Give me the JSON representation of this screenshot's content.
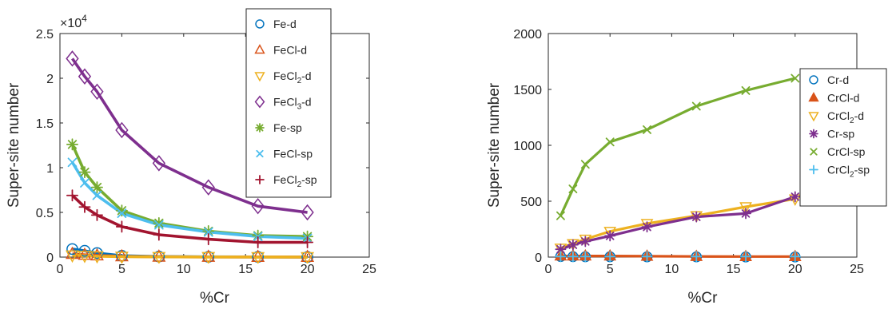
{
  "chart_data": [
    {
      "type": "line",
      "xlabel": "%Cr",
      "ylabel": "Super-site number",
      "xlim": [
        0,
        25
      ],
      "ylim": [
        0,
        25000
      ],
      "y_exponent_label": "×10",
      "y_exponent_power": "4",
      "xticks": [
        0,
        5,
        10,
        15,
        20,
        25
      ],
      "xtick_labels": [
        "0",
        "5",
        "10",
        "15",
        "20",
        "25"
      ],
      "yticks": [
        0,
        5000,
        10000,
        15000,
        20000,
        25000
      ],
      "ytick_labels": [
        "0",
        "0.5",
        "1",
        "1.5",
        "2",
        "2.5"
      ],
      "grid": false,
      "legend_position": "top-right",
      "x": [
        1,
        2,
        3,
        5,
        8,
        12,
        16,
        20
      ],
      "series": [
        {
          "name": "Fe-d",
          "name_base": "Fe-d",
          "name_sub": "",
          "name_tail": "",
          "color": "#0072BD",
          "marker": "circle",
          "values": [
            900,
            700,
            450,
            150,
            60,
            30,
            20,
            10
          ]
        },
        {
          "name": "FeCl-d",
          "name_base": "FeCl-d",
          "name_sub": "",
          "name_tail": "",
          "color": "#D95319",
          "marker": "triangle-up",
          "values": [
            350,
            250,
            180,
            80,
            40,
            20,
            15,
            10
          ]
        },
        {
          "name": "FeCl2-d",
          "name_base": "FeCl",
          "name_sub": "2",
          "name_tail": "-d",
          "color": "#EDB120",
          "marker": "triangle-down",
          "values": [
            200,
            150,
            100,
            50,
            25,
            15,
            10,
            5
          ]
        },
        {
          "name": "FeCl3-d",
          "name_base": "FeCl",
          "name_sub": "3",
          "name_tail": "-d",
          "color": "#7E2F8E",
          "marker": "diamond",
          "values": [
            22200,
            20200,
            18500,
            14200,
            10500,
            7800,
            5700,
            5000
          ]
        },
        {
          "name": "Fe-sp",
          "name_base": "Fe-sp",
          "name_sub": "",
          "name_tail": "",
          "color": "#77AC30",
          "marker": "asterisk",
          "values": [
            12600,
            9500,
            7800,
            5200,
            3800,
            2900,
            2400,
            2300
          ]
        },
        {
          "name": "FeCl-sp",
          "name_base": "FeCl-sp",
          "name_sub": "",
          "name_tail": "",
          "color": "#4DBEEE",
          "marker": "x",
          "values": [
            10600,
            8300,
            6900,
            4900,
            3600,
            2800,
            2300,
            2100
          ]
        },
        {
          "name": "FeCl2-sp",
          "name_base": "FeCl",
          "name_sub": "2",
          "name_tail": "-sp",
          "color": "#A2142F",
          "marker": "plus",
          "values": [
            6900,
            5600,
            4700,
            3400,
            2500,
            2000,
            1650,
            1650
          ]
        }
      ]
    },
    {
      "type": "line",
      "xlabel": "%Cr",
      "ylabel": "Super-site number",
      "xlim": [
        0,
        25
      ],
      "ylim": [
        0,
        2000
      ],
      "xticks": [
        0,
        5,
        10,
        15,
        20,
        25
      ],
      "xtick_labels": [
        "0",
        "5",
        "10",
        "15",
        "20",
        "25"
      ],
      "yticks": [
        0,
        500,
        1000,
        1500,
        2000
      ],
      "ytick_labels": [
        "0",
        "500",
        "1000",
        "1500",
        "2000"
      ],
      "grid": false,
      "legend_position": "right",
      "x": [
        1,
        2,
        3,
        5,
        8,
        12,
        16,
        20
      ],
      "series": [
        {
          "name": "Cr-d",
          "name_base": "Cr-d",
          "name_sub": "",
          "name_tail": "",
          "color": "#0072BD",
          "marker": "circle",
          "values": [
            5,
            4,
            3,
            3,
            2,
            2,
            1,
            1
          ]
        },
        {
          "name": "CrCl-d",
          "name_base": "CrCl-d",
          "name_sub": "",
          "name_tail": "",
          "color": "#D95319",
          "marker": "triangle-up-filled",
          "values": [
            10,
            10,
            10,
            10,
            8,
            6,
            5,
            5
          ]
        },
        {
          "name": "CrCl2-d",
          "name_base": "CrCl",
          "name_sub": "2",
          "name_tail": "-d",
          "color": "#EDB120",
          "marker": "triangle-down",
          "values": [
            80,
            120,
            160,
            230,
            300,
            370,
            450,
            520
          ]
        },
        {
          "name": "Cr-sp",
          "name_base": "Cr-sp",
          "name_sub": "",
          "name_tail": "",
          "color": "#7E2F8E",
          "marker": "asterisk",
          "values": [
            70,
            110,
            140,
            190,
            270,
            360,
            390,
            540
          ]
        },
        {
          "name": "CrCl-sp",
          "name_base": "CrCl-sp",
          "name_sub": "",
          "name_tail": "",
          "color": "#77AC30",
          "marker": "x",
          "values": [
            370,
            610,
            830,
            1030,
            1140,
            1350,
            1490,
            1600
          ]
        },
        {
          "name": "CrCl2-sp",
          "name_base": "CrCl",
          "name_sub": "2",
          "name_tail": "-sp",
          "color": "#4DBEEE",
          "marker": "plus",
          "values": [
            5,
            5,
            5,
            5,
            5,
            5,
            5,
            5
          ]
        }
      ],
      "line_series_order": [
        1,
        2,
        3,
        4
      ],
      "marker_series_order": [
        1,
        2,
        3,
        4
      ]
    }
  ]
}
